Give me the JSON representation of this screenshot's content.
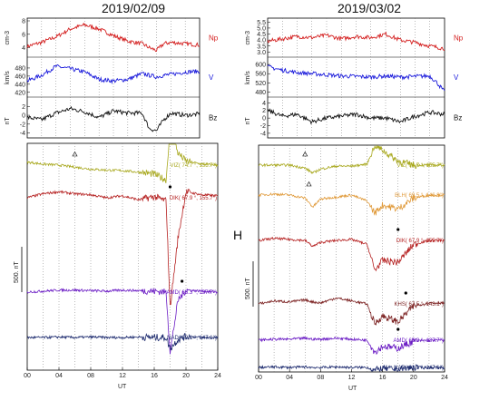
{
  "dates": {
    "left": "2019/02/09",
    "right": "2019/03/02"
  },
  "h_label": "H",
  "scale_label": "500. nT",
  "xaxis": {
    "label": "UT",
    "ticks": [
      "00",
      "04",
      "08",
      "12",
      "16",
      "20",
      "24"
    ]
  },
  "colors": {
    "Np": "#d42020",
    "V": "#1a1adb",
    "Bz": "#111111",
    "AMD": "#6a1bc4",
    "NAD": "#1c2a6e",
    "VIZ": "#a8a81e",
    "BLH": "#e09a3a",
    "DIK": "#b52020",
    "KHS": "#7a1f1f"
  },
  "chart_data": [
    {
      "type": "line",
      "panel": "solar-wind",
      "date": "2019/02/09",
      "xlabel": "UT",
      "x_range": [
        0,
        24
      ],
      "x_ticks": [
        "00",
        "04",
        "08",
        "12",
        "16",
        "20",
        "24"
      ],
      "series": [
        {
          "name": "Np",
          "unit": "cm-3",
          "ylim": [
            3,
            8
          ],
          "ticks": [
            "4",
            "6",
            "8"
          ],
          "x": [
            0,
            2,
            4,
            6,
            8,
            10,
            12,
            14,
            16,
            17,
            18,
            19,
            20,
            22,
            24
          ],
          "values": [
            4.2,
            4.8,
            5.6,
            6.8,
            7.4,
            6.8,
            5.8,
            5.0,
            4.6,
            4.0,
            3.6,
            4.6,
            4.8,
            4.6,
            4.4
          ]
        },
        {
          "name": "V",
          "unit": "km/s",
          "ylim": [
            415,
            500
          ],
          "ticks": [
            "420",
            "440",
            "460",
            "480"
          ],
          "x": [
            0,
            2,
            4,
            6,
            8,
            10,
            12,
            14,
            16,
            17,
            18,
            19,
            20,
            22,
            24
          ],
          "values": [
            448,
            462,
            484,
            478,
            470,
            452,
            448,
            452,
            466,
            462,
            458,
            462,
            464,
            470,
            472
          ]
        },
        {
          "name": "Bz",
          "unit": "nT",
          "ylim": [
            -4.5,
            3.5
          ],
          "ticks": [
            "-4",
            "-2",
            "0",
            "2"
          ],
          "x": [
            0,
            2,
            4,
            6,
            8,
            10,
            12,
            14,
            16,
            17,
            18,
            19,
            20,
            22,
            24
          ],
          "values": [
            -0.5,
            -1.0,
            0.5,
            1.5,
            0.8,
            -0.5,
            1.0,
            0.5,
            0.5,
            -3.0,
            -3.5,
            -1.0,
            0.5,
            0.0,
            0.3
          ]
        }
      ]
    },
    {
      "type": "line",
      "panel": "solar-wind",
      "date": "2019/03/02",
      "xlabel": "UT",
      "x_range": [
        0,
        24
      ],
      "x_ticks": [
        "00",
        "04",
        "08",
        "12",
        "16",
        "20",
        "24"
      ],
      "series": [
        {
          "name": "Np",
          "unit": "cm-3",
          "ylim": [
            2.8,
            5.6
          ],
          "ticks": [
            "3.0",
            "3.5",
            "4.0",
            "4.5",
            "5.0",
            "5.5"
          ],
          "x": [
            0,
            2,
            4,
            6,
            8,
            10,
            12,
            14,
            16,
            18,
            20,
            22,
            24
          ],
          "values": [
            3.9,
            4.1,
            4.3,
            4.2,
            4.4,
            4.1,
            4.3,
            4.2,
            4.5,
            4.0,
            3.8,
            3.5,
            3.3
          ]
        },
        {
          "name": "V",
          "unit": "km/s",
          "ylim": [
            470,
            620
          ],
          "ticks": [
            "480",
            "520",
            "560",
            "600"
          ],
          "x": [
            0,
            2,
            4,
            6,
            8,
            10,
            12,
            14,
            16,
            18,
            20,
            22,
            23,
            24
          ],
          "values": [
            590,
            575,
            565,
            560,
            555,
            550,
            548,
            545,
            550,
            545,
            548,
            550,
            520,
            480
          ]
        },
        {
          "name": "Bz",
          "unit": "nT",
          "ylim": [
            -4.5,
            4.8
          ],
          "ticks": [
            "-4",
            "-2",
            "0",
            "2",
            "4"
          ],
          "x": [
            0,
            2,
            4,
            6,
            8,
            10,
            12,
            14,
            16,
            18,
            20,
            22,
            24
          ],
          "values": [
            2.0,
            0.5,
            1.0,
            -1.0,
            0.0,
            0.5,
            1.0,
            0.0,
            0.0,
            -1.0,
            0.5,
            1.5,
            1.0
          ]
        }
      ]
    },
    {
      "type": "line",
      "panel": "magnetograms-H",
      "date": "2019/02/09",
      "xlabel": "UT",
      "x_range": [
        0,
        24
      ],
      "scale": "500. nT",
      "stations": [
        {
          "code": "VIZ",
          "label": "VIZ( 74.7 °, 155.7°)",
          "color": "#a8a81e",
          "onset_marker": "triangle",
          "marker_x": 6,
          "x": [
            0,
            2,
            4,
            6,
            8,
            10,
            12,
            14,
            16,
            17.5,
            18,
            19,
            20,
            22,
            24
          ],
          "values": [
            30,
            10,
            0,
            -20,
            -40,
            -50,
            -55,
            -70,
            -90,
            -150,
            380,
            120,
            40,
            10,
            0
          ]
        },
        {
          "code": "DIK",
          "label": "DIK( 67.9 °, 155.7°)",
          "color": "#b52020",
          "onset_marker": "dot",
          "marker_x": 18,
          "x": [
            0,
            2,
            4,
            6,
            8,
            10,
            12,
            14,
            16,
            17.5,
            18,
            19,
            20,
            22,
            24
          ],
          "values": [
            0,
            40,
            60,
            40,
            30,
            0,
            20,
            -20,
            10,
            -30,
            -1100,
            -400,
            60,
            30,
            20
          ]
        },
        {
          "code": "AMD",
          "label": "AMD( 65.3 °, 137.7°)",
          "color": "#6a1bc4",
          "onset_marker": "dot",
          "marker_x": 19.5,
          "x": [
            0,
            2,
            4,
            6,
            8,
            10,
            12,
            14,
            16,
            17.5,
            18,
            19,
            20,
            22,
            24
          ],
          "values": [
            0,
            10,
            20,
            20,
            15,
            10,
            20,
            15,
            10,
            0,
            -600,
            -80,
            20,
            10,
            0
          ]
        },
        {
          "code": "NAD",
          "label": "NAD( 62.1 °, 147.1°)",
          "color": "#1c2a6e",
          "x": [
            0,
            2,
            4,
            6,
            8,
            10,
            12,
            14,
            16,
            17.5,
            18,
            19,
            20,
            22,
            24
          ],
          "values": [
            0,
            0,
            5,
            0,
            5,
            0,
            0,
            5,
            0,
            0,
            -110,
            -20,
            10,
            0,
            0
          ]
        }
      ]
    },
    {
      "type": "line",
      "panel": "magnetograms-H",
      "date": "2019/03/02",
      "xlabel": "UT",
      "x_range": [
        0,
        24
      ],
      "scale": "500. nT",
      "stations": [
        {
          "code": "VIZ",
          "label": "VIZ( 74.7 °, 155.7°)",
          "color": "#a8a81e",
          "onset_marker": "triangle",
          "marker_x": 6,
          "x": [
            0,
            2,
            4,
            6,
            7,
            8,
            10,
            12,
            14,
            15,
            16,
            18,
            20,
            22,
            24
          ],
          "values": [
            0,
            0,
            0,
            -30,
            -80,
            -40,
            -10,
            -10,
            10,
            200,
            150,
            40,
            0,
            0,
            0
          ]
        },
        {
          "code": "BLH",
          "label": "BLH( 69.5 °, 146.8°)",
          "color": "#e09a3a",
          "onset_marker": "triangle",
          "marker_x": 6.5,
          "x": [
            0,
            2,
            4,
            6,
            7,
            8,
            10,
            12,
            14,
            15,
            16,
            18,
            20,
            22,
            24
          ],
          "values": [
            0,
            10,
            0,
            -30,
            -120,
            -40,
            -20,
            0,
            -60,
            -180,
            -100,
            -140,
            -30,
            0,
            0
          ]
        },
        {
          "code": "DIK",
          "label": "DIK( 67.9 °, 155.7°)",
          "color": "#b52020",
          "onset_marker": "dot",
          "marker_x": 18,
          "x": [
            0,
            2,
            4,
            6,
            7,
            8,
            10,
            12,
            14,
            15,
            16,
            18,
            20,
            22,
            24
          ],
          "values": [
            0,
            20,
            10,
            0,
            -60,
            -20,
            0,
            10,
            -40,
            -300,
            -200,
            -220,
            -40,
            0,
            0
          ]
        },
        {
          "code": "KHS",
          "label": "KHS( 67.5 °, 143.1°)",
          "color": "#7a1f1f",
          "onset_marker": "dot",
          "marker_x": 19,
          "x": [
            0,
            2,
            4,
            6,
            7,
            8,
            10,
            12,
            14,
            15,
            16,
            18,
            20,
            22,
            24
          ],
          "values": [
            0,
            30,
            20,
            40,
            20,
            10,
            60,
            30,
            0,
            -200,
            -120,
            -180,
            -20,
            10,
            10
          ]
        },
        {
          "code": "AMD",
          "label": "AMD( 65.3 °, 137.7°)",
          "color": "#6a1bc4",
          "onset_marker": "dot",
          "marker_x": 18,
          "x": [
            0,
            2,
            4,
            6,
            7,
            8,
            10,
            12,
            14,
            15,
            16,
            18,
            20,
            22,
            24
          ],
          "values": [
            0,
            10,
            10,
            20,
            10,
            10,
            20,
            10,
            0,
            -120,
            -60,
            -80,
            -10,
            0,
            0
          ]
        },
        {
          "code": "NAD",
          "label": "NAD( 62.1 °, 147.1°)",
          "color": "#1c2a6e",
          "x": [
            0,
            2,
            4,
            6,
            7,
            8,
            10,
            12,
            14,
            15,
            16,
            18,
            20,
            22,
            24
          ],
          "values": [
            0,
            5,
            0,
            5,
            0,
            0,
            5,
            0,
            0,
            -30,
            -10,
            -20,
            0,
            0,
            0
          ]
        }
      ]
    }
  ]
}
